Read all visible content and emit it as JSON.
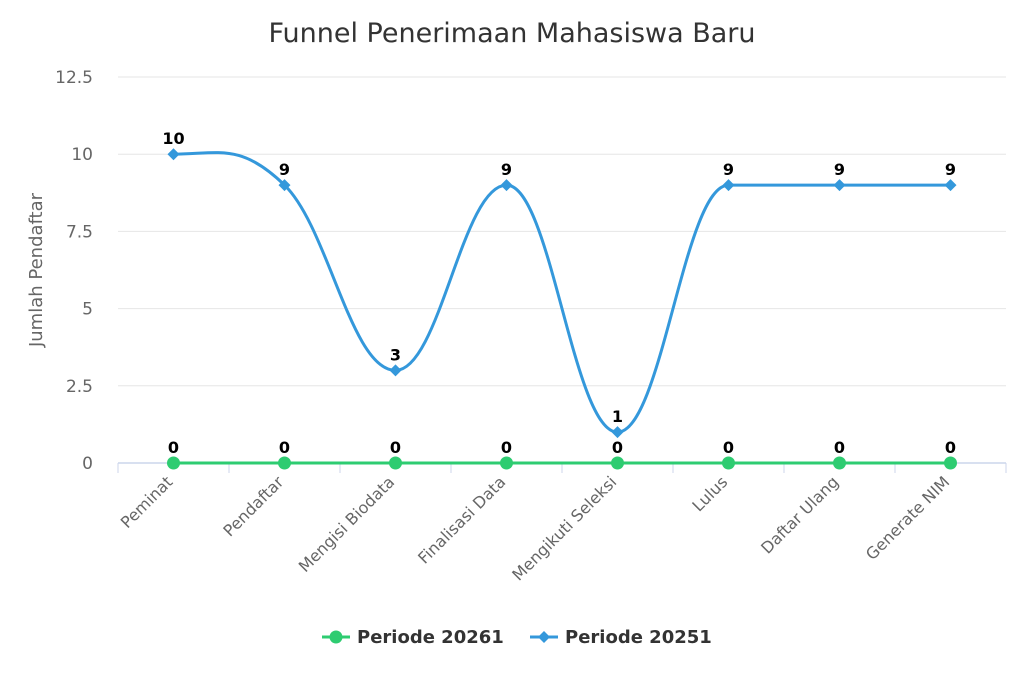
{
  "chart_data": {
    "type": "line",
    "title": "Funnel Penerimaan Mahasiswa Baru",
    "ylabel": "Jumlah Pendaftar",
    "xlabel": "",
    "categories": [
      "Peminat",
      "Pendaftar",
      "Mengisi Biodata",
      "Finalisasi Data",
      "Mengikuti Seleksi",
      "Lulus",
      "Daftar Ulang",
      "Generate NIM"
    ],
    "ylim": [
      0,
      12.5
    ],
    "yticks": [
      "0",
      "2.5",
      "5",
      "7.5",
      "10",
      "12.5"
    ],
    "grid": true,
    "legend_position": "bottom",
    "series": [
      {
        "name": "Periode 20261",
        "values": [
          0,
          0,
          0,
          0,
          0,
          0,
          0,
          0
        ],
        "color": "#2ecc71",
        "marker": "circle"
      },
      {
        "name": "Periode 20251",
        "values": [
          10,
          9,
          3,
          9,
          1,
          9,
          9,
          9
        ],
        "color": "#3498db",
        "marker": "diamond"
      }
    ]
  }
}
